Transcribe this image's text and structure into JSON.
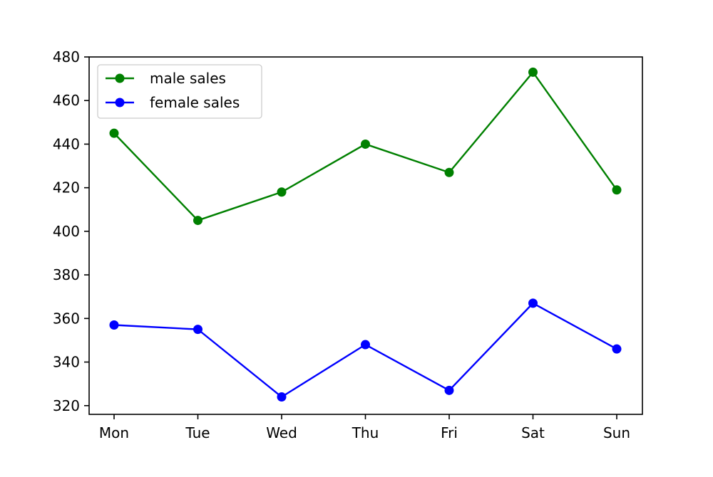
{
  "chart_data": {
    "type": "line",
    "title": "",
    "xlabel": "",
    "ylabel": "",
    "categories": [
      "Mon",
      "Tue",
      "Wed",
      "Thu",
      "Fri",
      "Sat",
      "Sun"
    ],
    "ylim": [
      316,
      480
    ],
    "yticks": [
      320,
      340,
      360,
      380,
      400,
      420,
      440,
      460,
      480
    ],
    "grid": false,
    "legend_position": "upper-left",
    "series": [
      {
        "name": "male sales",
        "color": "#008000",
        "marker": "circle",
        "values": [
          445,
          405,
          418,
          440,
          427,
          473,
          419
        ]
      },
      {
        "name": "female sales",
        "color": "#0000ff",
        "marker": "circle",
        "values": [
          357,
          355,
          324,
          348,
          327,
          367,
          346
        ]
      }
    ]
  }
}
